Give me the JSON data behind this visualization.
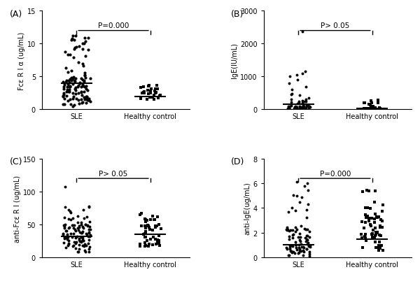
{
  "panels": [
    {
      "label": "(A)",
      "ylabel": "Fcε R I α (ug/mL)",
      "ylim": [
        0,
        15
      ],
      "yticks": [
        0,
        5,
        10,
        15
      ],
      "ptext": "P=0.000",
      "group1_marker": "o",
      "group2_marker": "s",
      "group1_median": 4.0,
      "group2_median": 2.0,
      "group1_n": 120,
      "group2_n": 30,
      "group1_spread": 0.28,
      "group2_spread": 0.2
    },
    {
      "label": "(B)",
      "ylabel": "IgE(IU/mL)",
      "ylim": [
        0,
        3000
      ],
      "yticks": [
        0,
        1000,
        2000,
        3000
      ],
      "ptext": "P> 0.05",
      "group1_marker": "o",
      "group2_marker": "s",
      "group1_median": 150,
      "group2_median": 30,
      "group1_n": 60,
      "group2_n": 25,
      "group1_spread": 0.25,
      "group2_spread": 0.18
    },
    {
      "label": "(C)",
      "ylabel": "anti-Fcε R I (ug/mL)",
      "ylim": [
        0,
        150
      ],
      "yticks": [
        0,
        50,
        100,
        150
      ],
      "ptext": "P> 0.05",
      "group1_marker": "o",
      "group2_marker": "s",
      "group1_median": 32,
      "group2_median": 35,
      "group1_n": 110,
      "group2_n": 55,
      "group1_spread": 0.28,
      "group2_spread": 0.22
    },
    {
      "label": "(D)",
      "ylabel": "anti-IgE(ug/mL)",
      "ylim": [
        0,
        8
      ],
      "yticks": [
        0,
        2,
        4,
        6,
        8
      ],
      "ptext": "P=0.000",
      "group1_marker": "o",
      "group2_marker": "s",
      "group1_median": 1.0,
      "group2_median": 1.5,
      "group1_n": 90,
      "group2_n": 60,
      "group1_spread": 0.25,
      "group2_spread": 0.22
    }
  ],
  "group1_label": "SLE",
  "group2_label": "Healthy control",
  "marker_color": "#000000",
  "median_linewidth": 1.5,
  "median_linelength": 0.32,
  "panel_label_fontsize": 9,
  "axis_fontsize": 7,
  "pvalue_fontsize": 7.5
}
